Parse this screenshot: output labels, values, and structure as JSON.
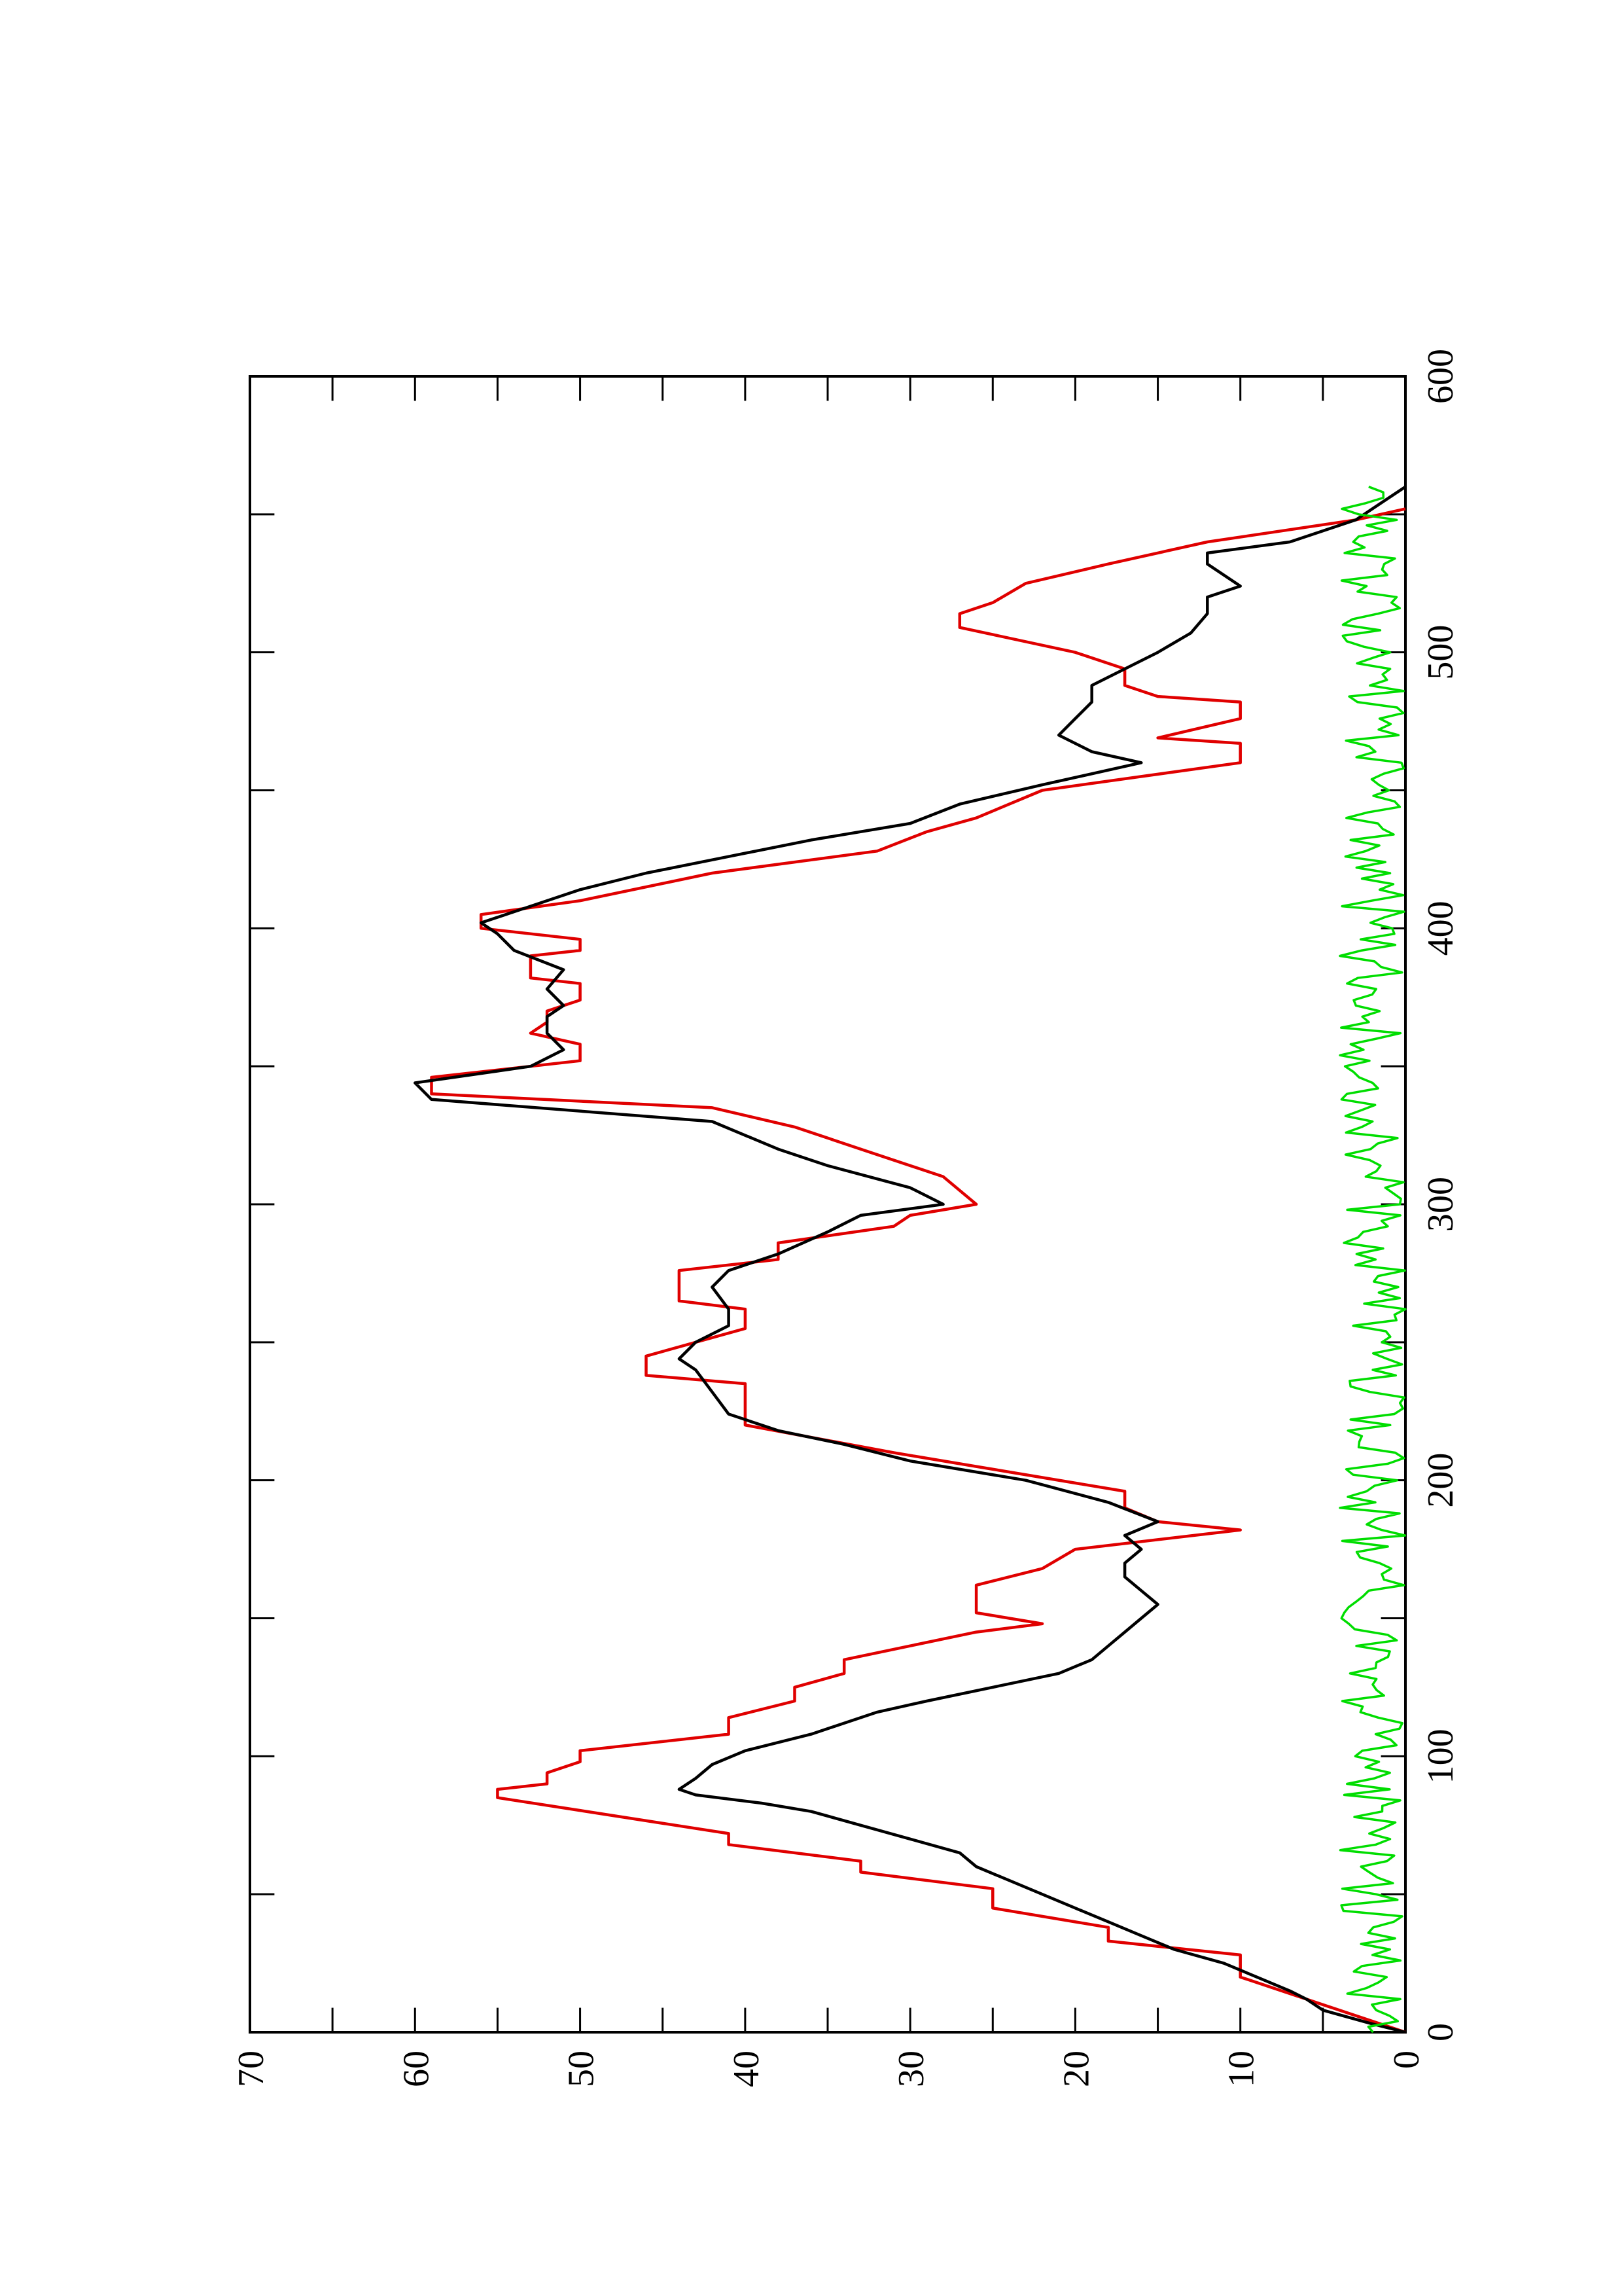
{
  "chart_data": {
    "type": "line",
    "orientation_note": "page rotated 90 degrees: x axis runs top-to-bottom on the right, y axis runs right-to-left at the bottom",
    "xlim": [
      0,
      600
    ],
    "ylim": [
      0,
      70
    ],
    "x_ticks": [
      "0",
      "100",
      "200",
      "300",
      "400",
      "500",
      "600"
    ],
    "y_ticks": [
      "0",
      "10",
      "20",
      "30",
      "40",
      "50",
      "60",
      "70"
    ],
    "grid": false,
    "legend": "none",
    "series": [
      {
        "color": "#e00000",
        "points": [
          [
            0,
            0
          ],
          [
            20,
            10
          ],
          [
            28,
            10
          ],
          [
            33,
            18
          ],
          [
            38,
            18
          ],
          [
            45,
            25
          ],
          [
            52,
            25
          ],
          [
            58,
            33
          ],
          [
            62,
            33
          ],
          [
            68,
            41
          ],
          [
            72,
            41
          ],
          [
            85,
            55
          ],
          [
            88,
            55
          ],
          [
            90,
            52
          ],
          [
            94,
            52
          ],
          [
            98,
            50
          ],
          [
            102,
            50
          ],
          [
            108,
            41
          ],
          [
            114,
            41
          ],
          [
            120,
            37
          ],
          [
            125,
            37
          ],
          [
            130,
            34
          ],
          [
            135,
            34
          ],
          [
            140,
            30
          ],
          [
            145,
            26
          ],
          [
            148,
            22
          ],
          [
            152,
            26
          ],
          [
            162,
            26
          ],
          [
            168,
            22
          ],
          [
            175,
            20
          ],
          [
            182,
            10
          ],
          [
            185,
            15
          ],
          [
            190,
            17
          ],
          [
            196,
            17
          ],
          [
            205,
            26
          ],
          [
            210,
            31
          ],
          [
            220,
            40
          ],
          [
            235,
            40
          ],
          [
            238,
            46
          ],
          [
            245,
            46
          ],
          [
            255,
            40
          ],
          [
            262,
            40
          ],
          [
            265,
            44
          ],
          [
            276,
            44
          ],
          [
            280,
            38
          ],
          [
            286,
            38
          ],
          [
            292,
            31
          ],
          [
            296,
            30
          ],
          [
            300,
            26
          ],
          [
            310,
            28
          ],
          [
            320,
            33
          ],
          [
            328,
            37
          ],
          [
            335,
            42
          ],
          [
            340,
            59
          ],
          [
            346,
            59
          ],
          [
            352,
            50
          ],
          [
            358,
            50
          ],
          [
            362,
            53
          ],
          [
            366,
            52
          ],
          [
            370,
            52
          ],
          [
            374,
            50
          ],
          [
            380,
            50
          ],
          [
            382,
            53
          ],
          [
            390,
            53
          ],
          [
            392,
            50
          ],
          [
            396,
            50
          ],
          [
            400,
            56
          ],
          [
            405,
            56
          ],
          [
            410,
            50
          ],
          [
            420,
            42
          ],
          [
            428,
            32
          ],
          [
            435,
            29
          ],
          [
            440,
            26
          ],
          [
            445,
            24
          ],
          [
            450,
            22
          ],
          [
            455,
            16
          ],
          [
            460,
            10
          ],
          [
            467,
            10
          ],
          [
            469,
            15
          ],
          [
            476,
            10
          ],
          [
            482,
            10
          ],
          [
            484,
            15
          ],
          [
            488,
            17
          ],
          [
            494,
            17
          ],
          [
            500,
            20
          ],
          [
            509,
            27
          ],
          [
            514,
            27
          ],
          [
            518,
            25
          ],
          [
            525,
            23
          ],
          [
            532,
            18
          ],
          [
            540,
            12
          ],
          [
            548,
            3
          ],
          [
            552,
            0
          ]
        ]
      },
      {
        "color": "#000000",
        "points": [
          [
            0,
            0
          ],
          [
            3,
            2
          ],
          [
            8,
            5
          ],
          [
            12,
            6
          ],
          [
            15,
            7
          ],
          [
            20,
            9
          ],
          [
            25,
            11
          ],
          [
            30,
            14
          ],
          [
            35,
            16
          ],
          [
            40,
            18
          ],
          [
            45,
            20
          ],
          [
            50,
            22
          ],
          [
            55,
            24
          ],
          [
            60,
            26
          ],
          [
            65,
            27
          ],
          [
            70,
            30
          ],
          [
            75,
            33
          ],
          [
            80,
            36
          ],
          [
            83,
            39
          ],
          [
            86,
            43
          ],
          [
            88,
            44
          ],
          [
            92,
            43
          ],
          [
            97,
            42
          ],
          [
            102,
            40
          ],
          [
            108,
            36
          ],
          [
            112,
            34
          ],
          [
            116,
            32
          ],
          [
            120,
            29
          ],
          [
            125,
            25
          ],
          [
            130,
            21
          ],
          [
            135,
            19
          ],
          [
            140,
            18
          ],
          [
            145,
            17
          ],
          [
            150,
            16
          ],
          [
            155,
            15
          ],
          [
            160,
            16
          ],
          [
            165,
            17
          ],
          [
            170,
            17
          ],
          [
            175,
            16
          ],
          [
            180,
            17
          ],
          [
            185,
            15
          ],
          [
            192,
            18
          ],
          [
            200,
            23
          ],
          [
            207,
            30
          ],
          [
            213,
            34
          ],
          [
            218,
            38
          ],
          [
            224,
            41
          ],
          [
            232,
            42
          ],
          [
            240,
            43
          ],
          [
            244,
            44
          ],
          [
            250,
            43
          ],
          [
            256,
            41
          ],
          [
            262,
            41
          ],
          [
            270,
            42
          ],
          [
            276,
            41
          ],
          [
            282,
            38
          ],
          [
            290,
            35
          ],
          [
            296,
            33
          ],
          [
            300,
            28
          ],
          [
            306,
            30
          ],
          [
            314,
            35
          ],
          [
            320,
            38
          ],
          [
            330,
            42
          ],
          [
            338,
            59
          ],
          [
            344,
            60
          ],
          [
            350,
            53
          ],
          [
            356,
            51
          ],
          [
            362,
            52
          ],
          [
            368,
            52
          ],
          [
            372,
            51
          ],
          [
            378,
            52
          ],
          [
            385,
            51
          ],
          [
            392,
            54
          ],
          [
            398,
            55
          ],
          [
            402,
            56
          ],
          [
            408,
            53
          ],
          [
            414,
            50
          ],
          [
            420,
            46
          ],
          [
            426,
            41
          ],
          [
            432,
            36
          ],
          [
            438,
            30
          ],
          [
            445,
            27
          ],
          [
            452,
            22
          ],
          [
            460,
            16
          ],
          [
            464,
            19
          ],
          [
            470,
            21
          ],
          [
            476,
            20
          ],
          [
            482,
            19
          ],
          [
            488,
            19
          ],
          [
            494,
            17
          ],
          [
            500,
            15
          ],
          [
            507,
            13
          ],
          [
            514,
            12
          ],
          [
            520,
            12
          ],
          [
            524,
            10
          ],
          [
            528,
            11
          ],
          [
            532,
            12
          ],
          [
            536,
            12
          ],
          [
            540,
            7
          ],
          [
            544,
            5
          ],
          [
            548,
            3
          ],
          [
            552,
            2
          ],
          [
            556,
            1
          ],
          [
            560,
            0
          ]
        ]
      },
      {
        "color": "#00dd00",
        "noise_min": 0,
        "noise_max": 4,
        "x_start": 0,
        "x_end": 560,
        "x_step": 2,
        "seed": 7
      }
    ]
  }
}
